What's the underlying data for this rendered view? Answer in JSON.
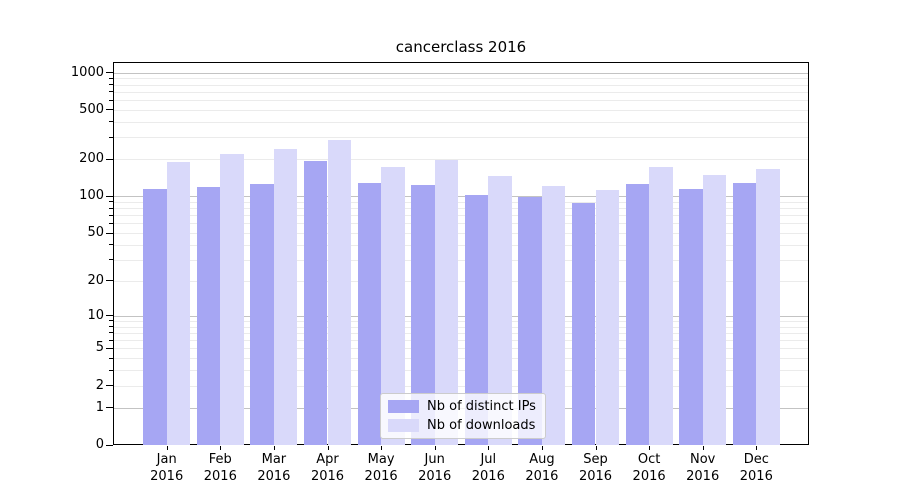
{
  "title": "cancerclass 2016",
  "chart_data": {
    "type": "bar",
    "title": "cancerclass 2016",
    "categories": [
      "Jan 2016",
      "Feb 2016",
      "Mar 2016",
      "Apr 2016",
      "May 2016",
      "Jun 2016",
      "Jul 2016",
      "Aug 2016",
      "Sep 2016",
      "Oct 2016",
      "Nov 2016",
      "Dec 2016"
    ],
    "x_tick_months": [
      "Jan",
      "Feb",
      "Mar",
      "Apr",
      "May",
      "Jun",
      "Jul",
      "Aug",
      "Sep",
      "Oct",
      "Nov",
      "Dec"
    ],
    "x_tick_year": "2016",
    "series": [
      {
        "name": "Nb of distinct IPs",
        "color": "#a6a6f3",
        "values": [
          115,
          120,
          125,
          193,
          127,
          124,
          102,
          98,
          88,
          125,
          115,
          127
        ]
      },
      {
        "name": "Nb of downloads",
        "color": "#d9d9fa",
        "values": [
          190,
          220,
          240,
          285,
          174,
          197,
          145,
          121,
          112,
          174,
          149,
          168
        ]
      }
    ],
    "y_scale": "log1p",
    "y_tick_values": [
      0,
      1,
      2,
      5,
      10,
      20,
      50,
      100,
      200,
      500,
      1000
    ],
    "ylim": [
      0,
      1200
    ],
    "grid": true,
    "legend": {
      "position": "inside-bottom-center",
      "labels": [
        "Nb of distinct IPs",
        "Nb of downloads"
      ]
    },
    "colors": {
      "major_gridline": "#c3c3c3",
      "minor_gridline": "#ebebeb",
      "axis": "#000000",
      "background": "#ffffff"
    }
  }
}
